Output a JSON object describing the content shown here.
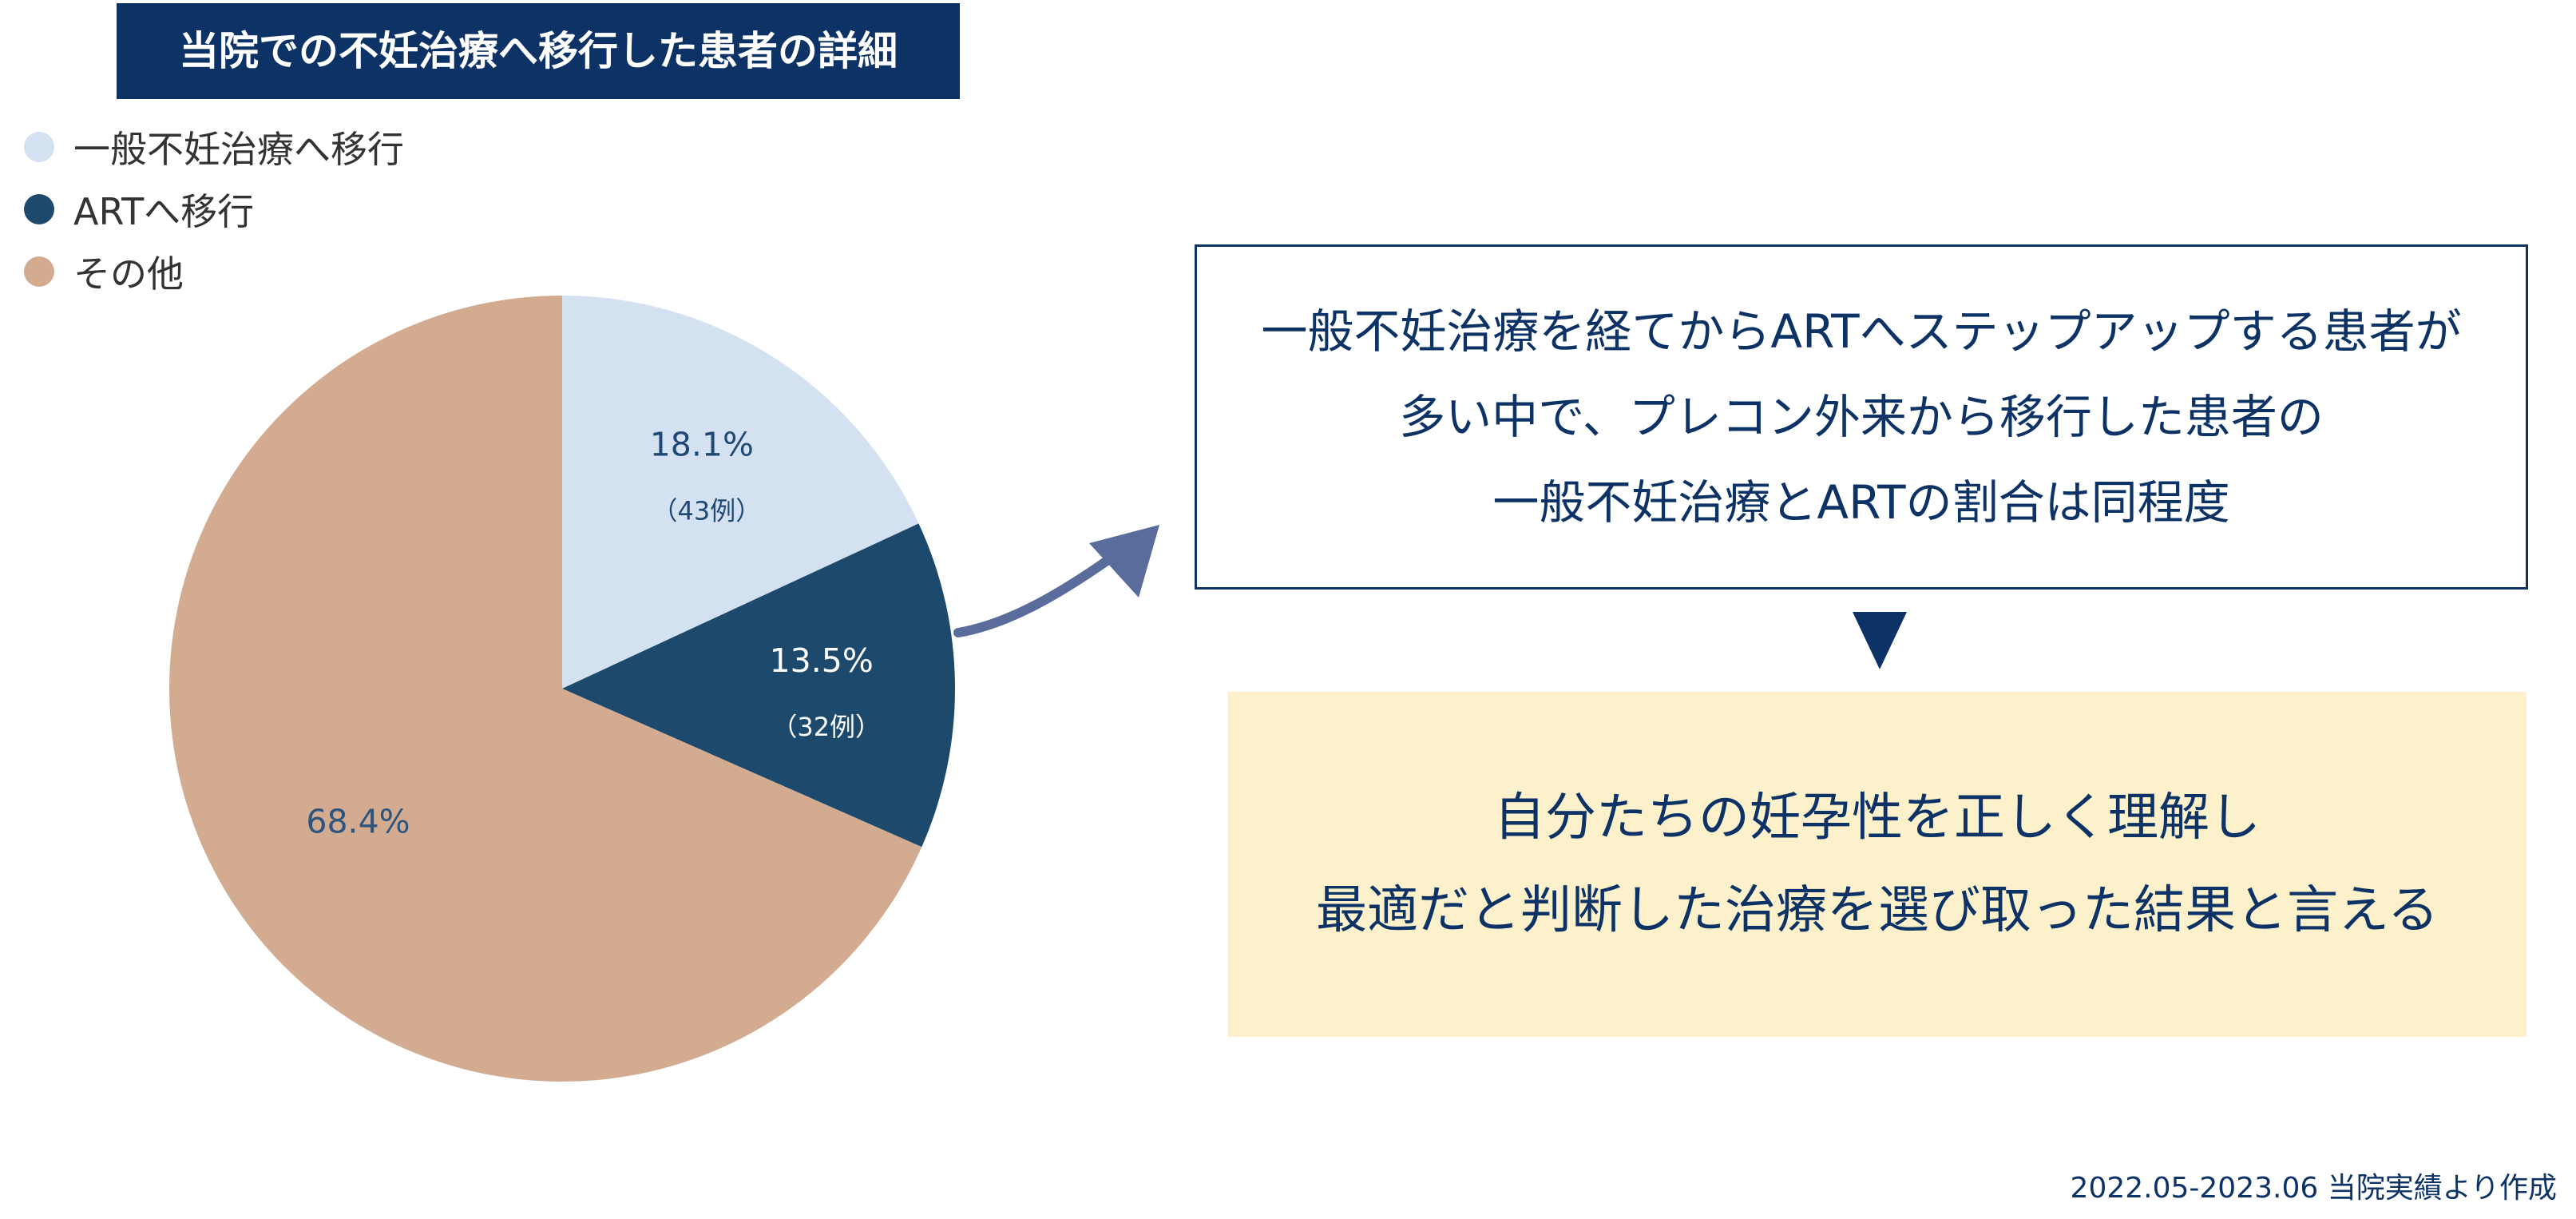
{
  "chart_data": {
    "type": "pie",
    "title": "当院での不妊治療へ移行した患者の詳細",
    "slices": [
      {
        "label": "一般不妊治療へ移行",
        "value": 18.1,
        "pct_label": "18.1%",
        "count_label": "（43例）",
        "color": "#d3e1f1",
        "text_color": "#1f4874"
      },
      {
        "label": "ARTへ移行",
        "value": 13.5,
        "pct_label": "13.5%",
        "count_label": "（32例）",
        "color": "#1d4a6c",
        "text_color": "#ffffff"
      },
      {
        "label": "その他",
        "value": 68.4,
        "pct_label": "68.4%",
        "count_label": "",
        "color": "#d3ab91",
        "text_color": "#2d557d"
      }
    ],
    "legend_position": "top-left",
    "start_angle_deg": 0,
    "direction": "clockwise"
  },
  "message": {
    "lines": [
      "一般不妊治療を経てからARTへステップアップする患者が",
      "多い中で、プレコン外来から移行した患者の",
      "一般不妊治療とARTの割合は同程度"
    ]
  },
  "conclusion": {
    "lines": [
      "自分たちの妊孕性を正しく理解し",
      "最適だと判断した治療を選び取った結果と言える"
    ]
  },
  "source_note": "2022.05-2023.06 当院実績より作成",
  "colors": {
    "title_bg": "#0d3366",
    "box_border": "#0d3366",
    "conclusion_bg": "#fdf1cc",
    "arrow": "#5a6c9c"
  }
}
